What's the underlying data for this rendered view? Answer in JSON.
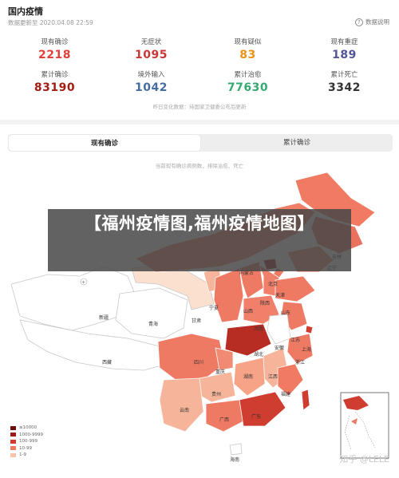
{
  "header": {
    "title": "国内疫情",
    "updated": "数据更新至 2020.04.08 22:59",
    "help_label": "数据说明"
  },
  "stats": [
    {
      "label": "现有确诊",
      "value": "2218",
      "color": "#e1403a"
    },
    {
      "label": "无症状",
      "value": "1095",
      "color": "#c93737"
    },
    {
      "label": "现有疑似",
      "value": "83",
      "color": "#ec9217"
    },
    {
      "label": "现有重症",
      "value": "189",
      "color": "#545499"
    },
    {
      "label": "累计确诊",
      "value": "83190",
      "color": "#a31d13"
    },
    {
      "label": "境外输入",
      "value": "1042",
      "color": "#476da0"
    },
    {
      "label": "累计治愈",
      "value": "77630",
      "color": "#34aa70"
    },
    {
      "label": "累计死亡",
      "value": "3342",
      "color": "#333333"
    }
  ],
  "note": "昨日变化数据：待国家卫健委公布后更新",
  "tabs": {
    "active": "现有确诊",
    "other": "累计确诊"
  },
  "map": {
    "caption": "当前现有确诊病例数，排除治愈、死亡",
    "labels": [
      "内蒙古",
      "吉林",
      "辽宁",
      "北京",
      "天津",
      "山西",
      "宁夏",
      "甘肃",
      "青海",
      "新疆",
      "西藏",
      "四川",
      "陕西",
      "河南",
      "山东",
      "江苏",
      "安徽",
      "湖北",
      "重庆",
      "上海",
      "浙江",
      "湖南",
      "江西",
      "贵州",
      "云南",
      "广西",
      "广东",
      "福建",
      "海南"
    ]
  },
  "legend": [
    {
      "label": "≥10000",
      "color": "#6b0f0f"
    },
    {
      "label": "1000-9999",
      "color": "#9e1b1b"
    },
    {
      "label": "100-999",
      "color": "#cf3c30"
    },
    {
      "label": "10-99",
      "color": "#ef7a63"
    },
    {
      "label": "1-9",
      "color": "#f8c3a8"
    }
  ],
  "overlay_title": "【福州疫情图,福州疫情地图】",
  "watermark": "知乎 @LELE"
}
